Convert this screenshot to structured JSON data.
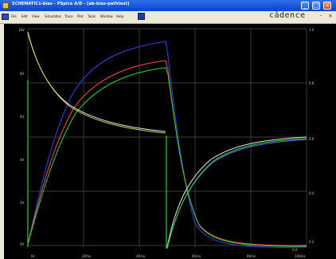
{
  "window": {
    "title": "SCHEMATIC1-bias - PSpice A/D - [ab-bias-pathtest]",
    "brand": "cādence",
    "menu": [
      "File",
      "Edit",
      "View",
      "Simulation",
      "Trace",
      "Plot",
      "Tools",
      "Window",
      "Help"
    ],
    "mdi_controls": [
      "-",
      "×"
    ]
  },
  "plot": {
    "background": "#000000",
    "grid": true,
    "grid_color": "#505050",
    "x_ticks": [
      "0s",
      "20ms",
      "40ms",
      "60ms",
      "80ms",
      "100ms"
    ],
    "y_left_ticks": [
      "10V",
      "8V",
      "6V",
      "4V",
      "2V",
      "0V"
    ],
    "y_right_ticks": [
      "1.0",
      "0.8",
      "0.6",
      "0.4",
      "0.2",
      "0.0"
    ],
    "series_colors": [
      "#3b3bff",
      "#ff4a4a",
      "#22dd22",
      "#e0e0e0",
      "#d8d84a"
    ]
  }
}
